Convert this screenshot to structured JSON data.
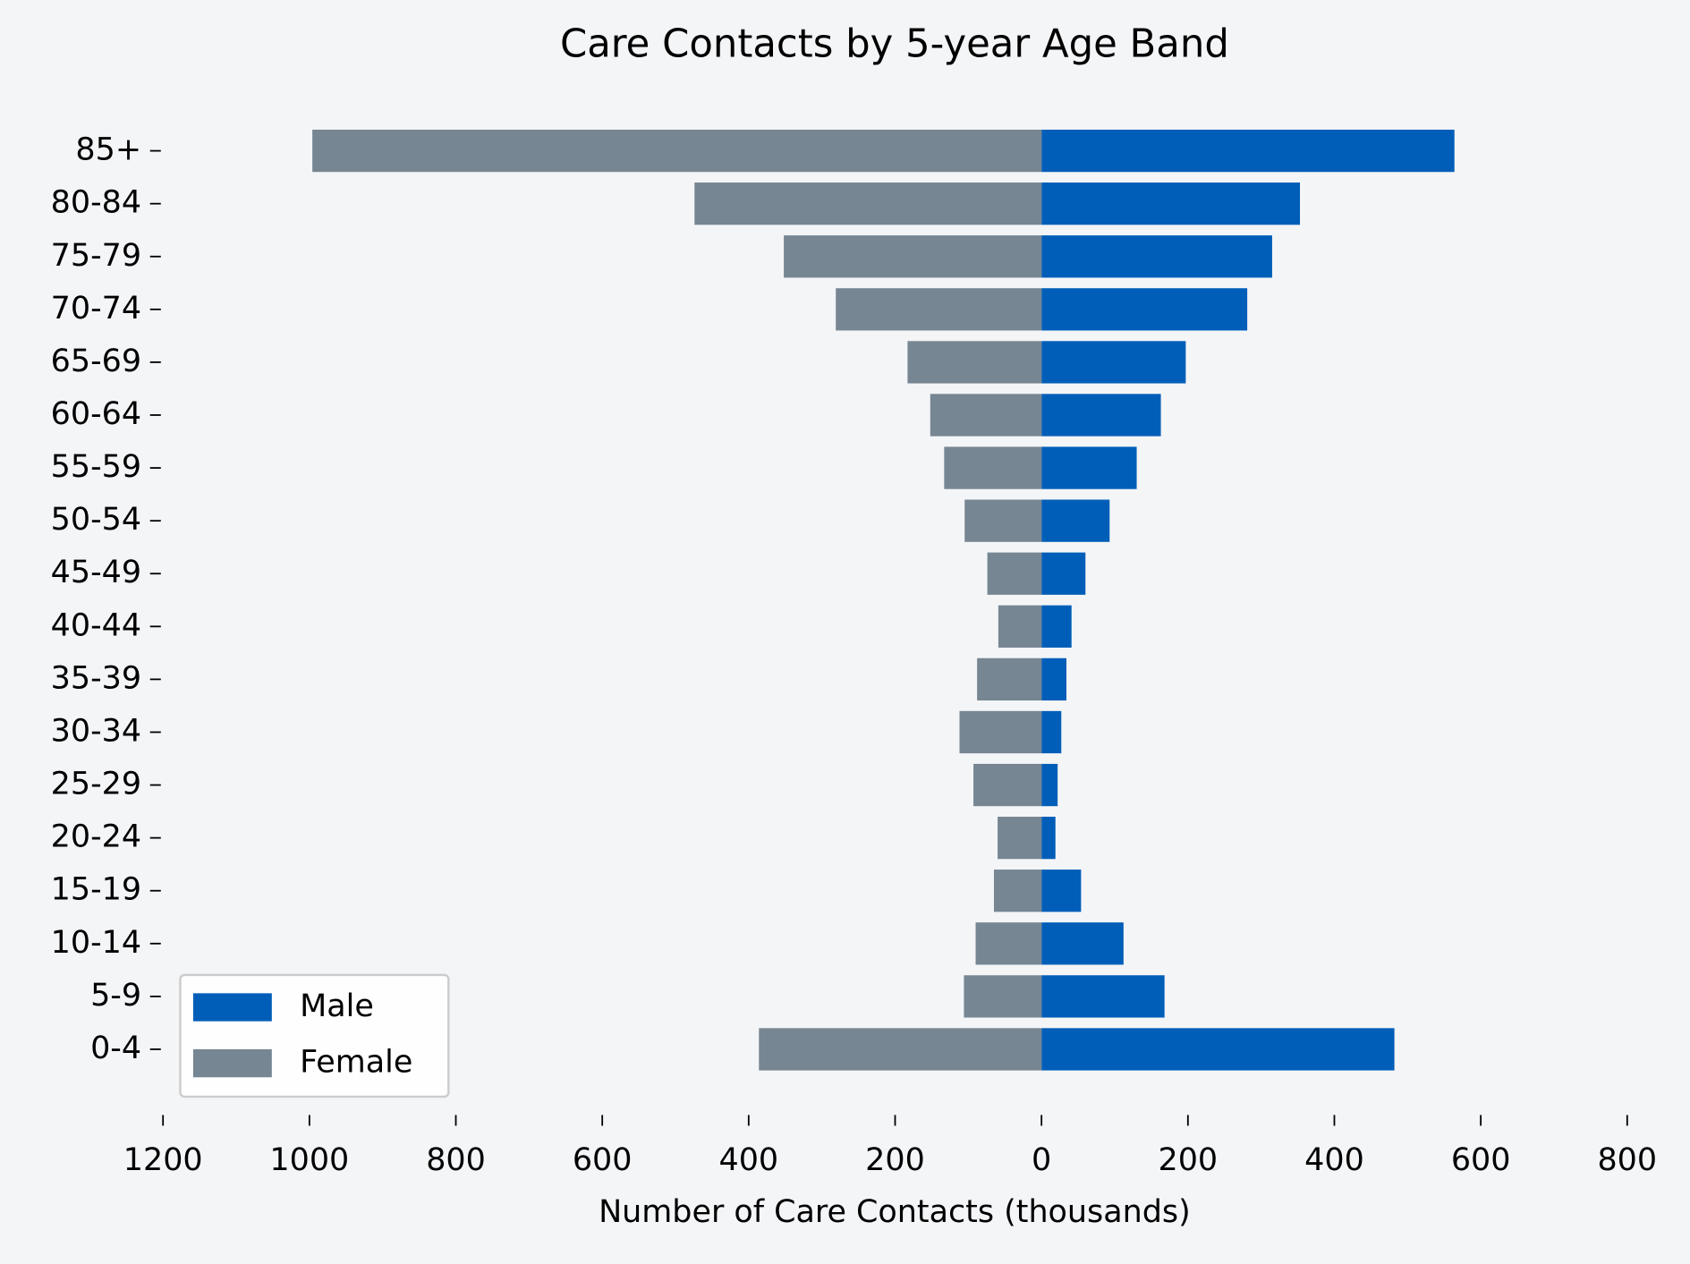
{
  "chart_data": {
    "type": "population_pyramid",
    "title": "Care Contacts by 5-year Age Band",
    "x_label": "Number of Care Contacts (thousands)",
    "categories": [
      "0-4",
      "5-9",
      "10-14",
      "15-19",
      "20-24",
      "25-29",
      "30-34",
      "35-39",
      "40-44",
      "45-49",
      "50-54",
      "55-59",
      "60-64",
      "65-69",
      "70-74",
      "75-79",
      "80-84",
      "85+"
    ],
    "series": [
      {
        "name": "Male",
        "color": "#005eb8",
        "values": [
          482,
          168,
          112,
          54,
          19,
          22,
          27,
          34,
          41,
          60,
          93,
          130,
          163,
          197,
          281,
          315,
          353,
          564
        ]
      },
      {
        "name": "Female",
        "color": "#768692",
        "values": [
          -386,
          -106,
          -90,
          -65,
          -60,
          -93,
          -112,
          -88,
          -59,
          -74,
          -105,
          -133,
          -152,
          -183,
          -281,
          -352,
          -474,
          -996
        ]
      }
    ],
    "xlim": [
      -1200,
      800
    ],
    "xticks": [
      {
        "value": -1200,
        "label": "1200"
      },
      {
        "value": -1000,
        "label": "1000"
      },
      {
        "value": -800,
        "label": "800"
      },
      {
        "value": -600,
        "label": "600"
      },
      {
        "value": -400,
        "label": "400"
      },
      {
        "value": -200,
        "label": "200"
      },
      0,
      200,
      400,
      600,
      800
    ],
    "legend_position": "lower left"
  }
}
